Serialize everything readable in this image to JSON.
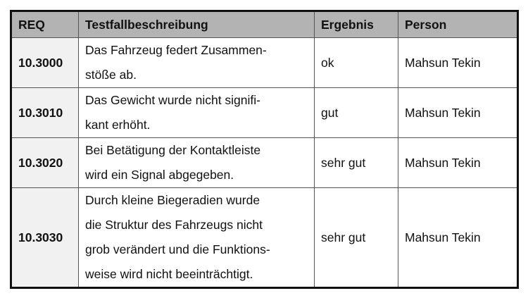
{
  "headers": {
    "req": "REQ",
    "desc": "Testfallbeschreibung",
    "result": "Ergebnis",
    "person": "Person"
  },
  "rows": [
    {
      "req": "10.3000",
      "desc": [
        "Das Fahrzeug federt Zusammen-",
        "stöße ab."
      ],
      "result": "ok",
      "person": "Mahsun Tekin"
    },
    {
      "req": "10.3010",
      "desc": [
        "Das Gewicht wurde nicht signifi-",
        "kant erhöht."
      ],
      "result": "gut",
      "person": "Mahsun Tekin"
    },
    {
      "req": "10.3020",
      "desc": [
        "Bei Betätigung der Kontaktleiste",
        "wird ein Signal abgegeben."
      ],
      "result": "sehr gut",
      "person": "Mahsun Tekin"
    },
    {
      "req": "10.3030",
      "desc": [
        "Durch kleine Biegeradien wurde",
        "die Struktur des Fahrzeugs nicht",
        "grob verändert und die Funktions-",
        "weise wird nicht beeinträchtigt."
      ],
      "result": "sehr gut",
      "person": "Mahsun Tekin"
    }
  ]
}
